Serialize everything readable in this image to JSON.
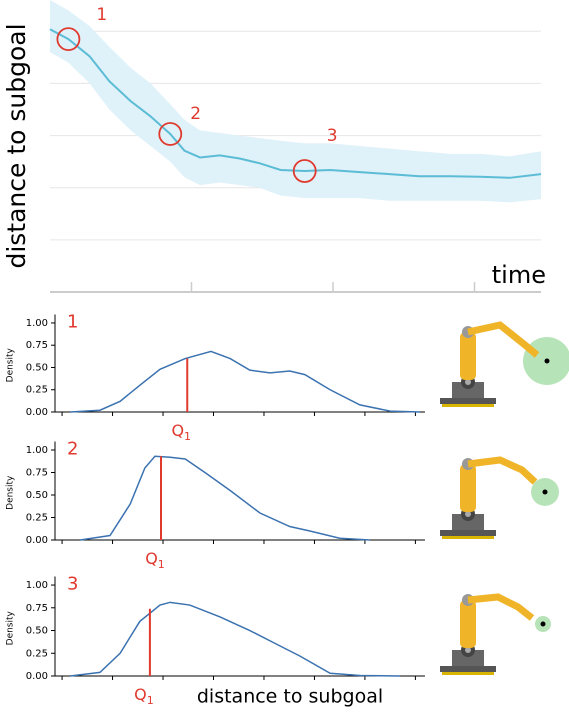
{
  "chart_data": [
    {
      "type": "line",
      "y_label": "distance to subgoal",
      "x_label": "time",
      "color": "#5bbcd6",
      "band_color": "#dff1f9",
      "grid": true,
      "show_tick_labels": false,
      "x": [
        0,
        0.13,
        0.28,
        0.42,
        0.57,
        0.71,
        0.85,
        0.95,
        1.06,
        1.2,
        1.34,
        1.48,
        1.63,
        1.8,
        1.98,
        2.19,
        2.4,
        2.61,
        2.83,
        3.04,
        3.25,
        3.47
      ],
      "values": [
        5.04,
        4.85,
        4.52,
        4.04,
        3.66,
        3.37,
        3.03,
        2.71,
        2.58,
        2.62,
        2.56,
        2.47,
        2.34,
        2.32,
        2.34,
        2.3,
        2.26,
        2.22,
        2.22,
        2.21,
        2.19,
        2.26
      ],
      "band_lower": [
        4.6,
        4.4,
        4.0,
        3.5,
        3.1,
        2.8,
        2.5,
        2.2,
        2.05,
        2.1,
        2.05,
        2.0,
        1.85,
        1.8,
        1.8,
        1.8,
        1.75,
        1.75,
        1.75,
        1.75,
        1.72,
        1.78
      ],
      "band_upper": [
        5.6,
        5.4,
        5.1,
        4.7,
        4.3,
        4.0,
        3.6,
        3.3,
        3.1,
        3.05,
        3.0,
        2.95,
        2.9,
        2.85,
        2.85,
        2.8,
        2.75,
        2.7,
        2.65,
        2.65,
        2.6,
        2.7
      ],
      "xlim": [
        0,
        3.47
      ],
      "ylim": [
        0,
        5.6
      ],
      "xticks": [
        1,
        2,
        3
      ],
      "yticks": [
        1,
        2,
        3,
        4,
        5
      ],
      "annotations": [
        {
          "text": "1",
          "x": 0.13,
          "y": 4.85
        },
        {
          "text": "2",
          "x": 0.85,
          "y": 3.03
        },
        {
          "text": "3",
          "x": 1.8,
          "y": 2.32
        }
      ],
      "annotation_color": "#e03a2f"
    },
    {
      "type": "line",
      "panel_label": "1",
      "y_label": "Density",
      "color": "#3b72b0",
      "x": [
        0.16,
        0.75,
        1.15,
        1.54,
        1.94,
        2.44,
        2.95,
        3.33,
        3.72,
        4.12,
        4.51,
        4.81,
        5.31,
        5.9,
        6.5,
        7.09
      ],
      "values": [
        0,
        0.02,
        0.12,
        0.3,
        0.48,
        0.6,
        0.68,
        0.6,
        0.47,
        0.44,
        0.46,
        0.42,
        0.25,
        0.08,
        0.01,
        0
      ],
      "xlim": [
        -0.14,
        7.19
      ],
      "ylim": [
        0,
        1.05
      ],
      "xticks": [
        0,
        1,
        2,
        3,
        4,
        5,
        6,
        7
      ],
      "yticks": [
        {
          "value": 0,
          "label": "0.00"
        },
        {
          "value": 0.25,
          "label": "0.25"
        },
        {
          "value": 0.5,
          "label": "0.50"
        },
        {
          "value": 0.75,
          "label": "0.75"
        },
        {
          "value": 1,
          "label": "1.00"
        }
      ],
      "quantile": {
        "label": "Q",
        "subscript": "1",
        "x": 2.48,
        "y": 0.6,
        "color": "#e03a2f"
      }
    },
    {
      "type": "line",
      "panel_label": "2",
      "y_label": "Density",
      "color": "#3b72b0",
      "x": [
        0.36,
        0.95,
        1.35,
        1.64,
        1.84,
        2.14,
        2.44,
        2.83,
        3.33,
        3.92,
        4.51,
        4.91,
        5.5,
        6.1
      ],
      "values": [
        0,
        0.05,
        0.4,
        0.8,
        0.93,
        0.92,
        0.9,
        0.75,
        0.55,
        0.3,
        0.15,
        0.1,
        0.02,
        0
      ],
      "xlim": [
        -0.14,
        7.19
      ],
      "ylim": [
        0,
        1.05
      ],
      "xticks": [
        0,
        1,
        2,
        3,
        4,
        5,
        6,
        7
      ],
      "yticks": [
        {
          "value": 0,
          "label": "0.00"
        },
        {
          "value": 0.25,
          "label": "0.25"
        },
        {
          "value": 0.5,
          "label": "0.50"
        },
        {
          "value": 0.75,
          "label": "0.75"
        },
        {
          "value": 1,
          "label": "1.00"
        }
      ],
      "quantile": {
        "label": "Q",
        "subscript": "1",
        "x": 1.96,
        "y": 0.93,
        "color": "#e03a2f"
      }
    },
    {
      "type": "line",
      "panel_label": "3",
      "y_label": "Density",
      "x_label": "distance to subgoal",
      "color": "#3b72b0",
      "x": [
        0.16,
        0.75,
        1.15,
        1.54,
        1.94,
        2.14,
        2.53,
        3.13,
        3.72,
        4.32,
        4.71,
        5.31,
        5.9,
        6.69
      ],
      "values": [
        0,
        0.04,
        0.25,
        0.6,
        0.78,
        0.81,
        0.78,
        0.65,
        0.5,
        0.33,
        0.22,
        0.03,
        0.005,
        0
      ],
      "xlim": [
        -0.14,
        7.19
      ],
      "ylim": [
        0,
        1.05
      ],
      "xticks": [
        0,
        1,
        2,
        3,
        4,
        5,
        6,
        7
      ],
      "yticks": [
        {
          "value": 0,
          "label": "0.00"
        },
        {
          "value": 0.25,
          "label": "0.25"
        },
        {
          "value": 0.5,
          "label": "0.50"
        },
        {
          "value": 0.75,
          "label": "0.75"
        },
        {
          "value": 1,
          "label": "1.00"
        }
      ],
      "quantile": {
        "label": "Q",
        "subscript": "1",
        "x": 1.74,
        "y": 0.74,
        "color": "#e03a2f"
      }
    }
  ]
}
